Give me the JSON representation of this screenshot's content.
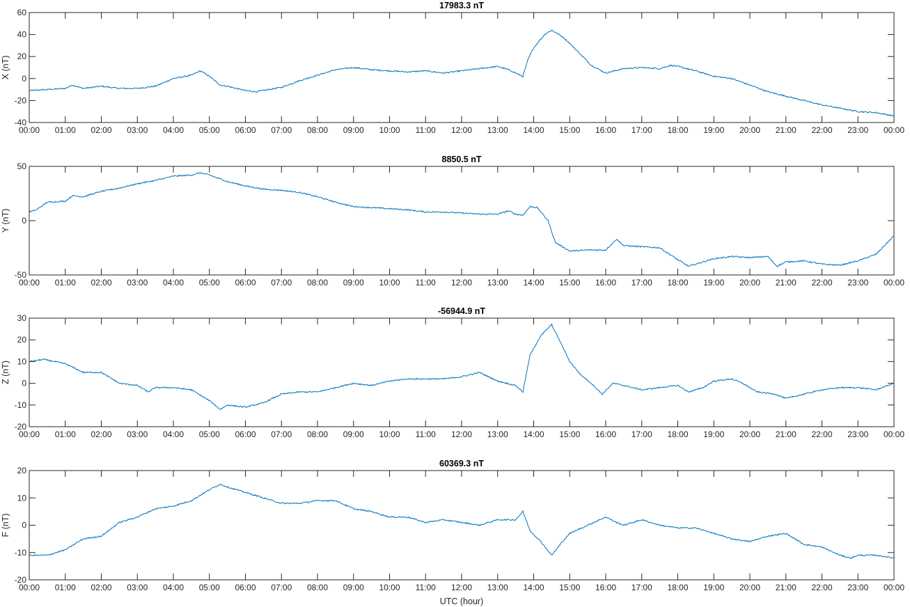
{
  "figure": {
    "xlabel": "UTC (hour)",
    "line_color": "#0072BD",
    "axis_color": "#262626"
  },
  "chart_data": [
    {
      "type": "line",
      "title": "17983.3 nT",
      "ylabel": "X (nT)",
      "xlabel": "",
      "xlim": [
        0,
        24
      ],
      "ylim": [
        -40,
        60
      ],
      "yticks": [
        -40,
        -20,
        0,
        20,
        40,
        60
      ],
      "xticks": [
        "00:00",
        "01:00",
        "02:00",
        "03:00",
        "04:00",
        "05:00",
        "06:00",
        "07:00",
        "08:00",
        "09:00",
        "10:00",
        "11:00",
        "12:00",
        "13:00",
        "14:00",
        "15:00",
        "16:00",
        "17:00",
        "18:00",
        "19:00",
        "20:00",
        "21:00",
        "22:00",
        "23:00",
        "00:00"
      ],
      "grid": false,
      "series": [
        {
          "x": [
            0,
            0.5,
            1.0,
            1.2,
            1.5,
            2.0,
            2.5,
            3.0,
            3.5,
            4.0,
            4.5,
            4.75,
            5.0,
            5.3,
            5.5,
            6.0,
            6.3,
            7.0,
            7.5,
            8.0,
            8.5,
            9.0,
            9.5,
            10.0,
            10.5,
            11.0,
            11.5,
            12.0,
            12.5,
            13.0,
            13.3,
            13.5,
            13.7,
            13.85,
            14.0,
            14.3,
            14.5,
            14.8,
            15.0,
            15.3,
            15.6,
            16.0,
            16.5,
            17.0,
            17.5,
            17.8,
            18.0,
            18.5,
            19.0,
            19.5,
            20.0,
            20.5,
            21.0,
            21.5,
            22.0,
            22.5,
            23.0,
            23.5,
            24.0
          ],
          "values": [
            -11,
            -10,
            -9,
            -6,
            -9,
            -7,
            -9,
            -9,
            -7,
            0,
            3,
            7,
            2,
            -6,
            -7,
            -11,
            -12,
            -8,
            -2,
            3,
            8,
            10,
            8,
            7,
            6,
            7,
            5,
            7,
            9,
            11,
            8,
            5,
            2,
            18,
            28,
            40,
            44,
            38,
            32,
            22,
            12,
            5,
            9,
            10,
            9,
            12,
            11,
            7,
            2,
            0,
            -6,
            -12,
            -16,
            -20,
            -24,
            -27,
            -30,
            -31,
            -34
          ]
        }
      ]
    },
    {
      "type": "line",
      "title": "8850.5 nT",
      "ylabel": "Y (nT)",
      "xlabel": "",
      "xlim": [
        0,
        24
      ],
      "ylim": [
        -50,
        50
      ],
      "yticks": [
        -50,
        0,
        50
      ],
      "xticks": [
        "00:00",
        "01:00",
        "02:00",
        "03:00",
        "04:00",
        "05:00",
        "06:00",
        "07:00",
        "08:00",
        "09:00",
        "10:00",
        "11:00",
        "12:00",
        "13:00",
        "14:00",
        "15:00",
        "16:00",
        "17:00",
        "18:00",
        "19:00",
        "20:00",
        "21:00",
        "22:00",
        "23:00",
        "00:00"
      ],
      "grid": false,
      "series": [
        {
          "x": [
            0,
            0.2,
            0.5,
            1.0,
            1.2,
            1.5,
            2.0,
            2.5,
            3.0,
            3.5,
            4.0,
            4.5,
            4.75,
            5.0,
            5.5,
            6.0,
            6.5,
            7.0,
            7.5,
            8.0,
            8.5,
            9.0,
            9.5,
            10.0,
            10.5,
            11.0,
            11.5,
            12.0,
            12.5,
            13.0,
            13.3,
            13.5,
            13.7,
            13.9,
            14.1,
            14.4,
            14.6,
            15.0,
            15.5,
            16.0,
            16.3,
            16.5,
            17.0,
            17.5,
            18.0,
            18.3,
            18.7,
            19.0,
            19.5,
            20.0,
            20.5,
            20.75,
            21.0,
            21.5,
            22.0,
            22.5,
            23.0,
            23.5,
            24.0
          ],
          "values": [
            8,
            10,
            17,
            18,
            23,
            22,
            27,
            30,
            34,
            37,
            41,
            42,
            44,
            42,
            36,
            32,
            29,
            28,
            26,
            22,
            17,
            13,
            12,
            11,
            10,
            8,
            8,
            7,
            6,
            6,
            9,
            6,
            5,
            13,
            12,
            0,
            -20,
            -28,
            -27,
            -27,
            -17,
            -23,
            -24,
            -25,
            -36,
            -42,
            -38,
            -35,
            -33,
            -34,
            -33,
            -42,
            -38,
            -37,
            -40,
            -41,
            -37,
            -31,
            -14
          ]
        }
      ]
    },
    {
      "type": "line",
      "title": "-56944.9 nT",
      "ylabel": "Z (nT)",
      "xlabel": "",
      "xlim": [
        0,
        24
      ],
      "ylim": [
        -20,
        30
      ],
      "yticks": [
        -20,
        -10,
        0,
        10,
        20,
        30
      ],
      "xticks": [
        "00:00",
        "01:00",
        "02:00",
        "03:00",
        "04:00",
        "05:00",
        "06:00",
        "07:00",
        "08:00",
        "09:00",
        "10:00",
        "11:00",
        "12:00",
        "13:00",
        "14:00",
        "15:00",
        "16:00",
        "17:00",
        "18:00",
        "19:00",
        "20:00",
        "21:00",
        "22:00",
        "23:00",
        "00:00"
      ],
      "grid": false,
      "series": [
        {
          "x": [
            0,
            0.4,
            1.0,
            1.5,
            2.0,
            2.5,
            3.0,
            3.3,
            3.5,
            4.0,
            4.5,
            5.0,
            5.3,
            5.5,
            6.0,
            6.5,
            7.0,
            7.5,
            8.0,
            8.5,
            9.0,
            9.5,
            10.0,
            10.5,
            11.0,
            11.5,
            12.0,
            12.5,
            13.0,
            13.5,
            13.7,
            13.9,
            14.2,
            14.5,
            14.8,
            15.0,
            15.3,
            15.6,
            15.9,
            16.2,
            16.5,
            17.0,
            17.5,
            18.0,
            18.3,
            18.7,
            19.0,
            19.5,
            19.8,
            20.2,
            20.7,
            21.0,
            21.5,
            22.0,
            22.5,
            23.0,
            23.5,
            24.0
          ],
          "values": [
            10,
            11,
            9,
            5,
            5,
            0,
            -1,
            -4,
            -2,
            -2,
            -3,
            -8,
            -12,
            -10,
            -11,
            -9,
            -5,
            -4,
            -4,
            -2,
            0,
            -1,
            1,
            2,
            2,
            2,
            3,
            5,
            1,
            -1,
            -4,
            13,
            22,
            27,
            17,
            10,
            4,
            0,
            -5,
            0,
            -1,
            -3,
            -2,
            -1,
            -4,
            -2,
            1,
            2,
            0,
            -4,
            -5,
            -7,
            -5,
            -3,
            -2,
            -2,
            -3,
            0
          ]
        }
      ]
    },
    {
      "type": "line",
      "title": "60369.3 nT",
      "ylabel": "F (nT)",
      "xlabel": "UTC (hour)",
      "xlim": [
        0,
        24
      ],
      "ylim": [
        -20,
        20
      ],
      "yticks": [
        -20,
        -10,
        0,
        10,
        20
      ],
      "xticks": [
        "00:00",
        "01:00",
        "02:00",
        "03:00",
        "04:00",
        "05:00",
        "06:00",
        "07:00",
        "08:00",
        "09:00",
        "10:00",
        "11:00",
        "12:00",
        "13:00",
        "14:00",
        "15:00",
        "16:00",
        "17:00",
        "18:00",
        "19:00",
        "20:00",
        "21:00",
        "22:00",
        "23:00",
        "00:00"
      ],
      "grid": false,
      "series": [
        {
          "x": [
            0,
            0.5,
            1.0,
            1.5,
            2.0,
            2.5,
            3.0,
            3.5,
            4.0,
            4.5,
            5.0,
            5.3,
            5.5,
            6.0,
            6.5,
            7.0,
            7.5,
            8.0,
            8.5,
            9.0,
            9.5,
            10.0,
            10.5,
            11.0,
            11.5,
            12.0,
            12.5,
            13.0,
            13.5,
            13.7,
            13.9,
            14.2,
            14.5,
            14.8,
            15.0,
            15.5,
            16.0,
            16.3,
            16.5,
            17.0,
            17.5,
            18.0,
            18.5,
            19.0,
            19.5,
            20.0,
            20.5,
            21.0,
            21.5,
            22.0,
            22.5,
            22.8,
            23.0,
            23.5,
            24.0
          ],
          "values": [
            -11,
            -11,
            -9,
            -5,
            -4,
            1,
            3,
            6,
            7,
            9,
            13,
            15,
            14,
            12,
            10,
            8,
            8,
            9,
            9,
            6,
            5,
            3,
            3,
            1,
            2,
            1,
            0,
            2,
            2,
            5,
            -2,
            -6,
            -11,
            -6,
            -3,
            0,
            3,
            1,
            0,
            2,
            0,
            -1,
            -1,
            -3,
            -5,
            -6,
            -4,
            -3,
            -7,
            -8,
            -11,
            -12,
            -11,
            -11,
            -12
          ]
        }
      ]
    }
  ]
}
